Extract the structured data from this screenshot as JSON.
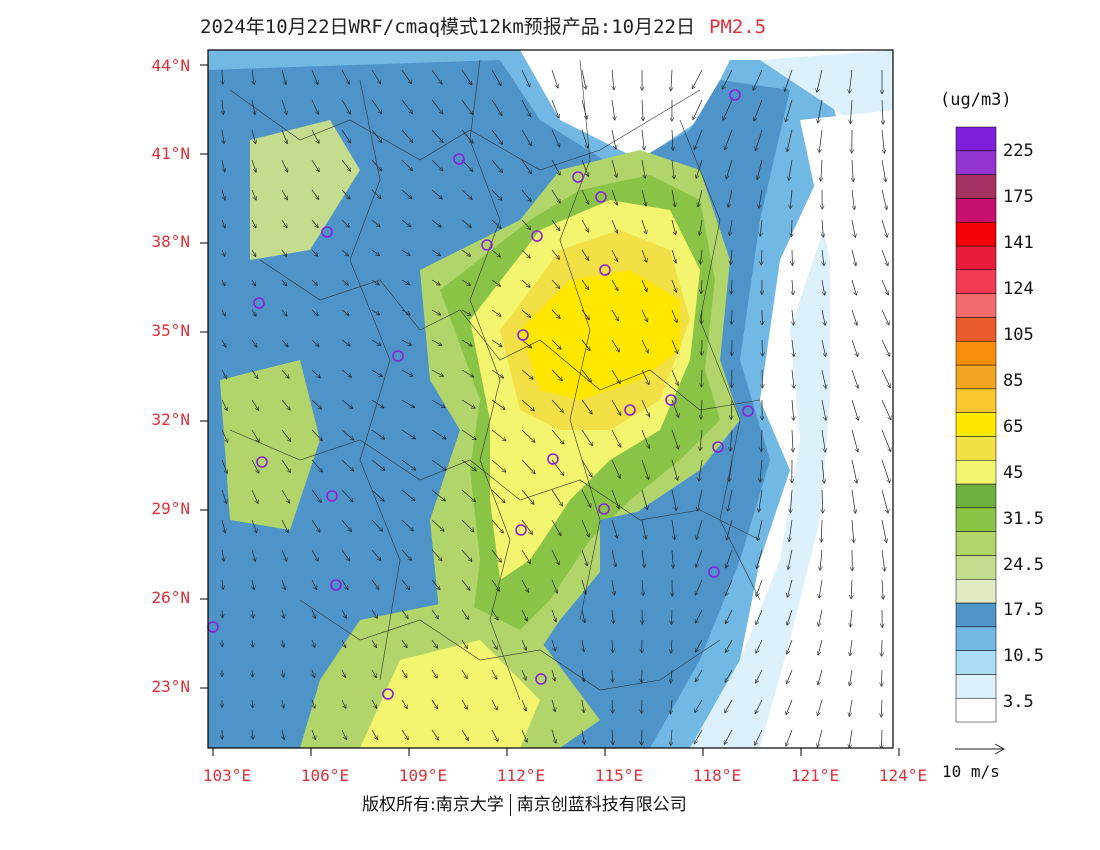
{
  "title": {
    "text": "2024年10月22日WRF/cmaq模式12km预报产品:10月22日",
    "pollutant": "PM2.5"
  },
  "axes": {
    "lat_labels": [
      "44°N",
      "41°N",
      "38°N",
      "35°N",
      "32°N",
      "29°N",
      "26°N",
      "23°N"
    ],
    "lon_labels": [
      "103°E",
      "106°E",
      "109°E",
      "112°E",
      "115°E",
      "118°E",
      "121°E",
      "124°E"
    ]
  },
  "legend": {
    "unit": "(ug/m3)",
    "colors": [
      "#ffffff",
      "#dcf1fb",
      "#a9dcf5",
      "#72b8e4",
      "#4f94c9",
      "#dfe9c2",
      "#c3dc8e",
      "#b1d56b",
      "#8ac447",
      "#6faf3e",
      "#f4f56e",
      "#f3e046",
      "#ffe700",
      "#fbc72e",
      "#f4a623",
      "#f88f0b",
      "#ea5c2b",
      "#f16d6d",
      "#f23a55",
      "#ea1a3a",
      "#f40009",
      "#c5106f",
      "#a33262",
      "#9334d1",
      "#7b1fdb"
    ],
    "labels": [
      "3.5",
      "10.5",
      "17.5",
      "24.5",
      "31.5",
      "45",
      "65",
      "85",
      "105",
      "124",
      "141",
      "175",
      "225"
    ],
    "wind_key": "10 m/s"
  },
  "credit": {
    "left": "版权所有:南京大学",
    "right": "南京创蓝科技有限公司"
  },
  "colors": {
    "axis_label": "#e0303a",
    "city_marker": "#8a22d8"
  }
}
